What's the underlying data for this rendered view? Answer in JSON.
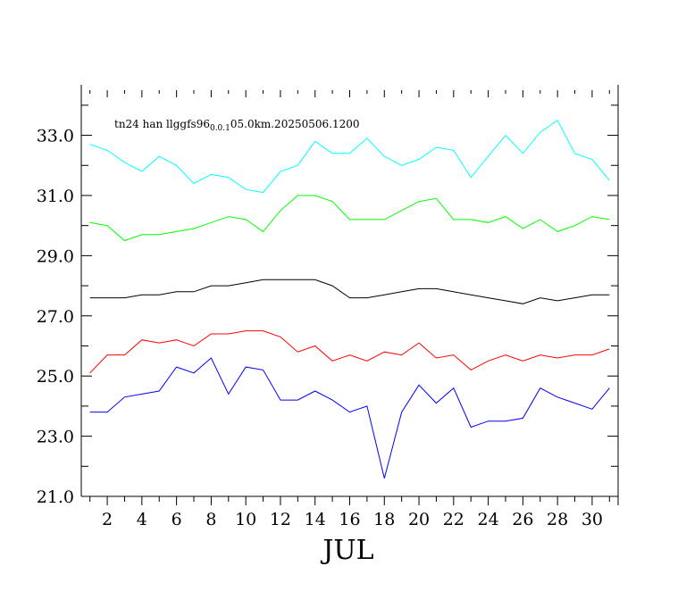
{
  "chart_data": {
    "type": "line",
    "annotation": {
      "prefix": "tn24 han llggfs96",
      "subscript": "0.0.1",
      "suffix": "05.0km.20250506.1200"
    },
    "xlabel": "JUL",
    "ylabel": "",
    "xlim": [
      0.5,
      31.5
    ],
    "ylim": [
      21.0,
      34.5
    ],
    "x_tick_labels": [
      "2",
      "4",
      "6",
      "8",
      "10",
      "12",
      "14",
      "16",
      "18",
      "20",
      "22",
      "24",
      "26",
      "28",
      "30"
    ],
    "x_tick_values": [
      2,
      4,
      6,
      8,
      10,
      12,
      14,
      16,
      18,
      20,
      22,
      24,
      26,
      28,
      30
    ],
    "y_tick_labels": [
      "21.0",
      "23.0",
      "25.0",
      "27.0",
      "29.0",
      "31.0",
      "33.0"
    ],
    "y_tick_values": [
      21,
      23,
      25,
      27,
      29,
      31,
      33
    ],
    "grid": false,
    "x": [
      1,
      2,
      3,
      4,
      5,
      6,
      7,
      8,
      9,
      10,
      11,
      12,
      13,
      14,
      15,
      16,
      17,
      18,
      19,
      20,
      21,
      22,
      23,
      24,
      25,
      26,
      27,
      28,
      29,
      30,
      31
    ],
    "series": [
      {
        "color": "#00ffff",
        "values": [
          32.7,
          32.5,
          32.1,
          31.8,
          32.3,
          32.0,
          31.4,
          31.7,
          31.6,
          31.2,
          31.1,
          31.8,
          32.0,
          32.8,
          32.4,
          32.4,
          32.9,
          32.3,
          32.0,
          32.2,
          32.6,
          32.5,
          31.6,
          32.3,
          33.0,
          32.4,
          33.1,
          33.5,
          32.4,
          32.2,
          31.5
        ]
      },
      {
        "color": "#00ff00",
        "values": [
          30.1,
          30.0,
          29.5,
          29.7,
          29.7,
          29.8,
          29.9,
          30.1,
          30.3,
          30.2,
          29.8,
          30.5,
          31.0,
          31.0,
          30.8,
          30.2,
          30.2,
          30.2,
          30.5,
          30.8,
          30.9,
          30.2,
          30.2,
          30.1,
          30.3,
          29.9,
          30.2,
          29.8,
          30.0,
          30.3,
          30.2
        ]
      },
      {
        "color": "#000000",
        "values": [
          27.6,
          27.6,
          27.6,
          27.7,
          27.7,
          27.8,
          27.8,
          28.0,
          28.0,
          28.1,
          28.2,
          28.2,
          28.2,
          28.2,
          28.0,
          27.6,
          27.6,
          27.7,
          27.8,
          27.9,
          27.9,
          27.8,
          27.7,
          27.6,
          27.5,
          27.4,
          27.6,
          27.5,
          27.6,
          27.7,
          27.7
        ]
      },
      {
        "color": "#ff0000",
        "values": [
          25.1,
          25.7,
          25.7,
          26.2,
          26.1,
          26.2,
          26.0,
          26.4,
          26.4,
          26.5,
          26.5,
          26.3,
          25.8,
          26.0,
          25.5,
          25.7,
          25.5,
          25.8,
          25.7,
          26.1,
          25.6,
          25.7,
          25.2,
          25.5,
          25.7,
          25.5,
          25.7,
          25.6,
          25.7,
          25.7,
          25.9
        ]
      },
      {
        "color": "#0000ff",
        "values": [
          23.8,
          23.8,
          24.3,
          24.4,
          24.5,
          25.3,
          25.1,
          25.6,
          24.4,
          25.3,
          25.2,
          24.2,
          24.2,
          24.5,
          24.2,
          23.8,
          24.0,
          21.6,
          23.8,
          24.7,
          24.1,
          24.6,
          23.3,
          23.5,
          23.5,
          23.6,
          24.6,
          24.3,
          24.1,
          23.9,
          24.6
        ]
      }
    ]
  }
}
